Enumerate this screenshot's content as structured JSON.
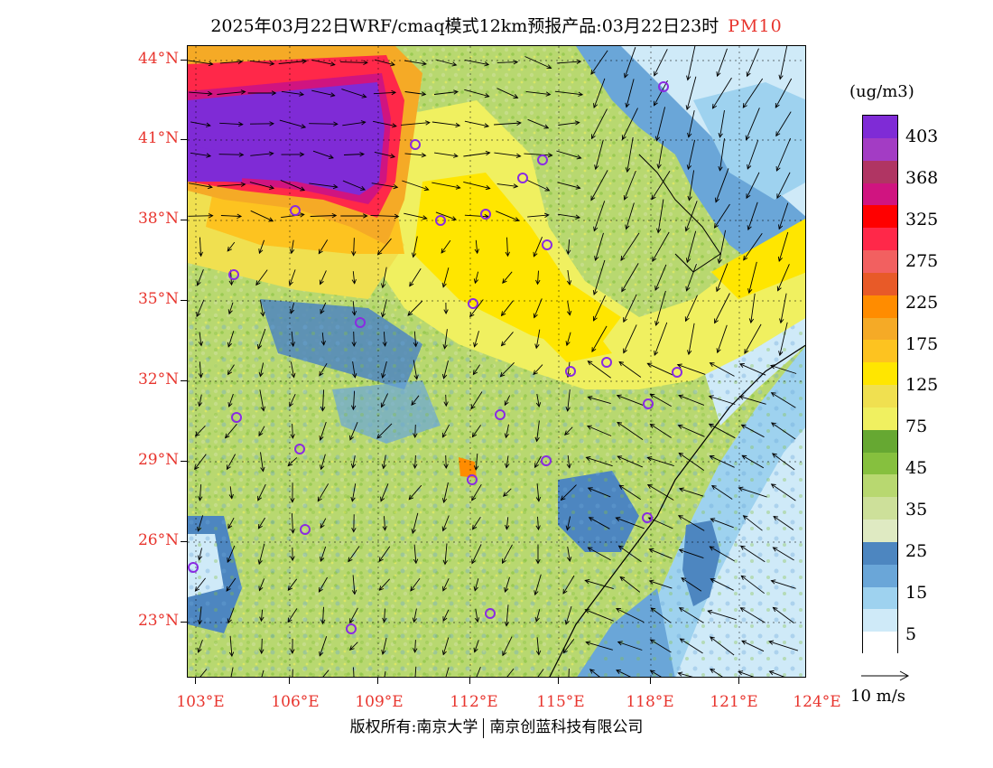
{
  "title": {
    "main": "2025年03月22日WRF/cmaq模式12km预报产品:03月22日23时",
    "pollutant": "PM10",
    "pollutant_color": "#e8352e"
  },
  "axes": {
    "lat_labels": [
      "44°N",
      "41°N",
      "38°N",
      "35°N",
      "32°N",
      "29°N",
      "26°N",
      "23°N"
    ],
    "lon_labels": [
      "103°E",
      "106°E",
      "109°E",
      "112°E",
      "115°E",
      "118°E",
      "121°E",
      "124°E"
    ]
  },
  "legend": {
    "units": "(ug/m3)",
    "labels": [
      "403",
      "368",
      "325",
      "275",
      "225",
      "175",
      "125",
      "75",
      "45",
      "35",
      "25",
      "15",
      "5"
    ],
    "colors": [
      "#7f2bd6",
      "#a33cc4",
      "#b03563",
      "#d01480",
      "#ff0000",
      "#ff2849",
      "#f26060",
      "#e85a28",
      "#ff8c00",
      "#f5aa26",
      "#fdc320",
      "#ffe600",
      "#f0e050",
      "#f0f060",
      "#66a832",
      "#86c03e",
      "#b8d870",
      "#cde09a",
      "#dfeac2",
      "#4d86c0",
      "#6aa6d8",
      "#9ed2ef",
      "#cfeaf8",
      "#ffffff"
    ],
    "vector_label": "10 m/s"
  },
  "stations": [
    "station",
    "station",
    "station",
    "station",
    "station",
    "station",
    "station",
    "station",
    "station",
    "station",
    "station",
    "station",
    "station",
    "station",
    "station",
    "station",
    "station",
    "station",
    "station",
    "station",
    "station",
    "station",
    "station",
    "station",
    "station"
  ],
  "copyright": {
    "owner": "版权所有:南京大学",
    "company": "南京创蓝科技有限公司"
  }
}
